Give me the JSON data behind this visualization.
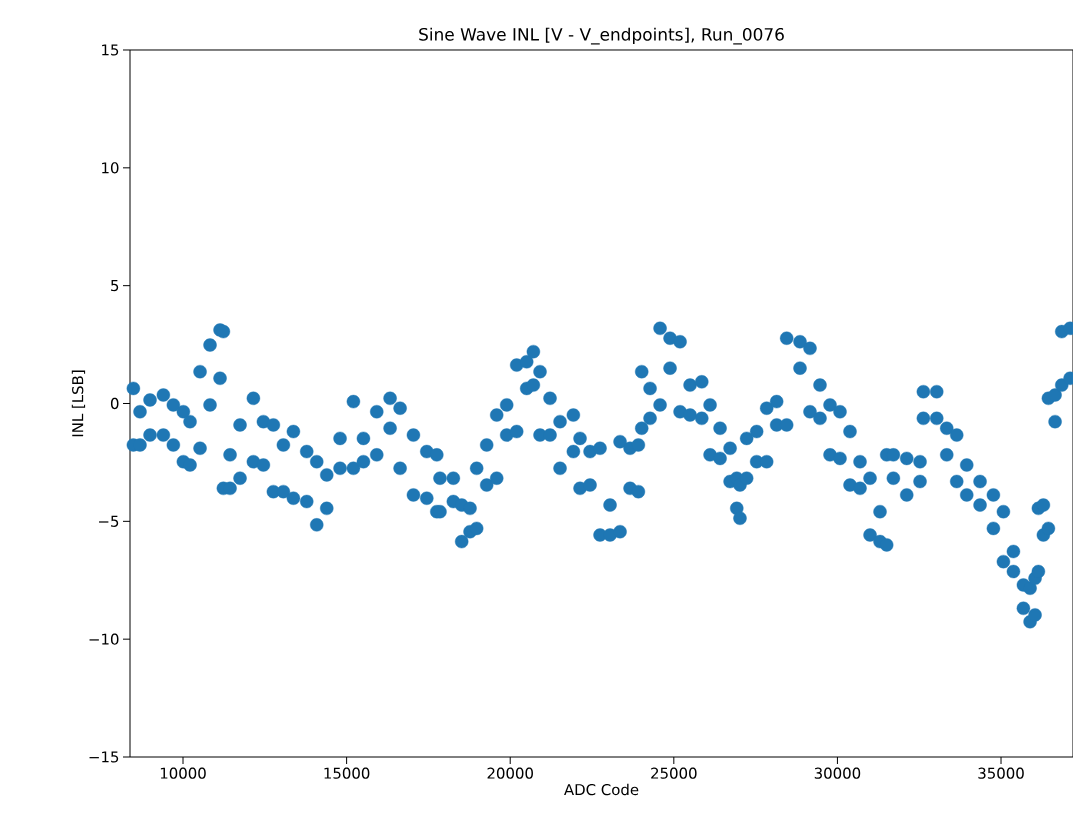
{
  "chart_data": {
    "type": "scatter",
    "title": "Sine Wave INL [V - V_endpoints], Run_0076",
    "xlabel": "ADC Code",
    "ylabel": "INL [LSB]",
    "xlim": [
      8380,
      37200
    ],
    "ylim": [
      -15,
      15
    ],
    "xticks": [
      10000,
      15000,
      20000,
      25000,
      30000,
      35000
    ],
    "yticks": [
      {
        "value": -15,
        "label": "−15"
      },
      {
        "value": -10,
        "label": "−10"
      },
      {
        "value": -5,
        "label": "−5"
      },
      0,
      5,
      10,
      15
    ],
    "marker": "circle",
    "grid": false,
    "series": [
      {
        "color": "#1f77b4",
        "x": [
          8483,
          8483,
          8686,
          8686,
          8992,
          8992,
          9400,
          9400,
          9705,
          9705,
          10011,
          10011,
          10215,
          10215,
          10521,
          10521,
          10826,
          10826,
          11132,
          11132,
          11234,
          11234,
          11438,
          11438,
          11743,
          11743,
          12151,
          12151,
          12457,
          12457,
          12762,
          12762,
          13068,
          13068,
          13374,
          13374,
          13781,
          13781,
          14087,
          14087,
          14393,
          14393,
          14800,
          14800,
          15208,
          15208,
          15514,
          15514,
          15921,
          15921,
          16329,
          16329,
          16635,
          16635,
          17042,
          17042,
          17450,
          17450,
          17756,
          17756,
          17854,
          17854,
          18262,
          18262,
          18517,
          18517,
          18772,
          18772,
          18975,
          18975,
          19281,
          19281,
          19587,
          19587,
          19892,
          19892,
          20198,
          20198,
          20504,
          20504,
          20708,
          20708,
          20911,
          20911,
          21217,
          21217,
          21523,
          21523,
          21930,
          21930,
          22134,
          22134,
          22440,
          22440,
          22745,
          22745,
          23051,
          23051,
          23357,
          23357,
          23663,
          23663,
          23917,
          23917,
          24019,
          24019,
          24274,
          24274,
          24580,
          24580,
          24885,
          24885,
          25191,
          25191,
          25497,
          25497,
          25854,
          25854,
          26108,
          26108,
          26414,
          26414,
          26720,
          26720,
          26924,
          26924,
          27022,
          27022,
          27226,
          27226,
          27532,
          27532,
          27838,
          27838,
          28143,
          28143,
          28449,
          28449,
          28857,
          28857,
          29162,
          29162,
          29468,
          29468,
          29774,
          29774,
          30079,
          30079,
          30385,
          30385,
          30691,
          30691,
          30997,
          30997,
          31302,
          31302,
          31506,
          31506,
          31710,
          31710,
          32118,
          32118,
          32525,
          32525,
          32627,
          32627,
          33035,
          33035,
          33341,
          33341,
          33646,
          33646,
          33952,
          33952,
          34359,
          34359,
          34767,
          34767,
          35073,
          35073,
          35379,
          35379,
          35684,
          35684,
          35888,
          35888,
          36040,
          36040,
          36142,
          36142,
          36295,
          36295,
          36448,
          36448,
          36652,
          36652,
          36856,
          36856,
          37111,
          37111
        ],
        "values": [
          0.64,
          -1.76,
          -0.35,
          -1.76,
          0.15,
          -1.34,
          0.36,
          -1.34,
          -0.06,
          -1.76,
          -0.35,
          -2.47,
          -0.77,
          -2.61,
          1.35,
          -1.9,
          2.48,
          -0.06,
          3.12,
          1.07,
          3.05,
          -3.6,
          -2.18,
          -3.6,
          -0.91,
          -3.17,
          0.22,
          -2.47,
          -0.77,
          -2.61,
          -0.91,
          -3.74,
          -1.76,
          -3.74,
          -1.19,
          -4.02,
          -2.04,
          -4.16,
          -2.47,
          -5.15,
          -3.03,
          -4.45,
          -1.48,
          -2.75,
          0.08,
          -2.75,
          -1.48,
          -2.47,
          -0.35,
          -2.18,
          0.22,
          -1.05,
          -0.2,
          -2.75,
          -1.34,
          -3.88,
          -2.04,
          -4.02,
          -2.18,
          -4.59,
          -3.17,
          -4.59,
          -3.17,
          -4.16,
          -4.31,
          -5.86,
          -4.45,
          -5.44,
          -2.75,
          -5.3,
          -1.76,
          -3.46,
          -0.49,
          -3.17,
          -0.06,
          -1.34,
          1.63,
          -1.19,
          1.77,
          0.64,
          2.2,
          0.78,
          1.35,
          -1.34,
          0.22,
          -1.34,
          -0.77,
          -2.75,
          -0.49,
          -2.04,
          -1.48,
          -3.6,
          -2.04,
          -3.46,
          -1.9,
          -5.58,
          -4.31,
          -5.58,
          -1.62,
          -5.44,
          -1.9,
          -3.6,
          -1.76,
          -3.74,
          1.35,
          -1.05,
          0.64,
          -0.63,
          3.19,
          -0.06,
          2.77,
          1.5,
          2.62,
          -0.35,
          0.78,
          -0.49,
          0.92,
          -0.63,
          -0.06,
          -2.18,
          -1.05,
          -2.33,
          -1.9,
          -3.31,
          -3.17,
          -4.45,
          -3.46,
          -4.87,
          -1.48,
          -3.17,
          -1.19,
          -2.47,
          -0.2,
          -2.47,
          0.08,
          -0.91,
          2.77,
          -0.91,
          2.62,
          1.5,
          2.34,
          -0.35,
          0.78,
          -0.63,
          -0.06,
          -2.18,
          -0.35,
          -2.33,
          -1.19,
          -3.46,
          -2.47,
          -3.6,
          -3.17,
          -5.58,
          -4.59,
          -5.86,
          -2.18,
          -6.0,
          -2.18,
          -3.17,
          -2.33,
          -3.88,
          -2.47,
          -3.31,
          0.5,
          -0.63,
          0.5,
          -0.63,
          -1.05,
          -2.18,
          -1.34,
          -3.31,
          -2.61,
          -3.88,
          -3.31,
          -4.31,
          -3.88,
          -5.3,
          -4.59,
          -6.71,
          -6.28,
          -7.13,
          -7.7,
          -8.69,
          -7.84,
          -9.26,
          -7.42,
          -8.97,
          -4.45,
          -7.13,
          -4.31,
          -5.58,
          0.22,
          -5.3,
          0.36,
          -0.77,
          3.05,
          0.78,
          3.19,
          1.07
        ]
      }
    ]
  }
}
